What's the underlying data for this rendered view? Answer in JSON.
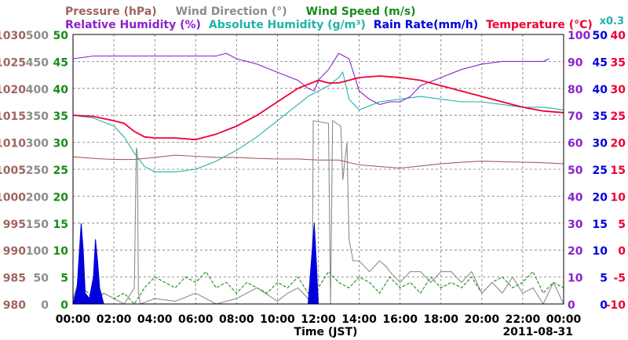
{
  "colors": {
    "pressure": "#a0645f",
    "wind_direction": "#8c8c8c",
    "wind_speed": "#1a8a1a",
    "relative_humidity": "#8a22cc",
    "absolute_humidity": "#20b2aa",
    "rain_rate": "#0000dd",
    "temperature": "#ee0033"
  },
  "chart_data": {
    "type": "line",
    "legend": {
      "row1": [
        {
          "key": "pressure",
          "label": "Pressure (hPa)"
        },
        {
          "key": "wind_direction",
          "label": "Wind Direction (°)"
        },
        {
          "key": "wind_speed",
          "label": "Wind Speed (m/s)"
        }
      ],
      "row2": [
        {
          "key": "relative_humidity",
          "label": "Relative Humidity (%)"
        },
        {
          "key": "absolute_humidity",
          "label": "Absolute Humidity (g/m³)"
        },
        {
          "key": "rain_rate",
          "label": "Rain Rate(mm/h)"
        },
        {
          "key": "temperature",
          "label": "Temperature (°C)"
        }
      ],
      "scale_note": "x0.3"
    },
    "xlabel": "Time (JST)",
    "date": "2011-08-31",
    "x_ticks": [
      "00:00",
      "02:00",
      "04:00",
      "06:00",
      "08:00",
      "10:00",
      "12:00",
      "14:00",
      "16:00",
      "18:00",
      "20:00",
      "22:00",
      "00:00"
    ],
    "xlim_hours": [
      0,
      24
    ],
    "grid": true,
    "axes": {
      "pressure": {
        "side": "left",
        "min": 980,
        "max": 1030,
        "ticks": [
          "980",
          "985",
          "990",
          "995",
          "1000",
          "1005",
          "1010",
          "1015",
          "1020",
          "1025",
          "1030"
        ]
      },
      "wind_direction": {
        "side": "left",
        "min": 0,
        "max": 500,
        "ticks": [
          "0",
          "50",
          "100",
          "150",
          "200",
          "250",
          "300",
          "350",
          "400",
          "450",
          "500"
        ]
      },
      "wind_speed": {
        "side": "left",
        "min": 0,
        "max": 50,
        "ticks": [
          "0",
          "5",
          "10",
          "15",
          "20",
          "25",
          "30",
          "35",
          "40",
          "45",
          "50"
        ]
      },
      "relative_humidity": {
        "side": "right",
        "min": 0,
        "max": 100,
        "ticks": [
          "0",
          "10",
          "20",
          "30",
          "40",
          "50",
          "60",
          "70",
          "80",
          "90",
          "100"
        ]
      },
      "rain_rate": {
        "side": "right",
        "min": 0,
        "max": 50,
        "ticks": [
          "0",
          "5",
          "10",
          "15",
          "20",
          "25",
          "30",
          "35",
          "40",
          "45",
          "50"
        ]
      },
      "temperature": {
        "side": "right",
        "min": -10,
        "max": 40,
        "ticks": [
          "-10",
          "-5",
          "0",
          "5",
          "10",
          "15",
          "20",
          "25",
          "30",
          "35",
          "40"
        ]
      }
    },
    "series": [
      {
        "name": "Pressure (hPa)",
        "key": "pressure",
        "axis": "pressure",
        "x": [
          0,
          1,
          2,
          3,
          4,
          5,
          6,
          7,
          8,
          9,
          10,
          11,
          12,
          13,
          14,
          15,
          16,
          17,
          18,
          19,
          20,
          21,
          22,
          23,
          24
        ],
        "y": [
          1007.3,
          1007,
          1006.8,
          1006.8,
          1007.2,
          1007.6,
          1007.4,
          1007.2,
          1007.2,
          1007,
          1006.9,
          1006.9,
          1006.7,
          1006.7,
          1005.8,
          1005.5,
          1005.2,
          1005.6,
          1006,
          1006.3,
          1006.5,
          1006.4,
          1006.3,
          1006.2,
          1006
        ]
      },
      {
        "name": "Wind Direction (°)",
        "key": "wind_direction",
        "axis": "wind_direction",
        "x": [
          0,
          0.25,
          0.5,
          1,
          1.5,
          2,
          2.5,
          3,
          3.1,
          3.15,
          3.2,
          3.3,
          4,
          5,
          6,
          7,
          8,
          9,
          10,
          10.5,
          11,
          11.5,
          11.7,
          11.75,
          12.5,
          12.6,
          12.7,
          13.1,
          13.2,
          13.4,
          13.5,
          13.7,
          14,
          14.5,
          15,
          15.3,
          15.5,
          16,
          16.5,
          17,
          17.5,
          18,
          18.5,
          19,
          19.5,
          20,
          20.5,
          21,
          21.5,
          22,
          22.5,
          23,
          23.5,
          24
        ],
        "y": [
          10,
          40,
          5,
          0,
          20,
          10,
          0,
          30,
          290,
          280,
          20,
          0,
          10,
          5,
          20,
          0,
          10,
          30,
          5,
          20,
          30,
          10,
          0,
          340,
          335,
          0,
          340,
          330,
          230,
          300,
          120,
          80,
          80,
          60,
          80,
          70,
          60,
          40,
          60,
          60,
          40,
          60,
          60,
          40,
          60,
          20,
          40,
          20,
          50,
          20,
          30,
          0,
          40,
          0
        ]
      },
      {
        "name": "Wind Speed (m/s)",
        "key": "wind_speed",
        "axis": "wind_speed",
        "x": [
          0,
          0.5,
          1,
          1.5,
          2,
          2.5,
          3,
          3.5,
          4,
          4.5,
          5,
          5.5,
          6,
          6.5,
          7,
          7.5,
          8,
          8.5,
          9,
          9.5,
          10,
          10.5,
          11,
          11.5,
          12,
          12.5,
          13,
          13.5,
          14,
          14.5,
          15,
          15.5,
          16,
          16.5,
          17,
          17.5,
          18,
          18.5,
          19,
          19.5,
          20,
          20.5,
          21,
          21.5,
          22,
          22.5,
          23,
          23.5,
          24
        ],
        "y": [
          1,
          3,
          1,
          2,
          1,
          2,
          0,
          3,
          5,
          4,
          3,
          5,
          4,
          6,
          3,
          4,
          2,
          4,
          3,
          2,
          4,
          3,
          5,
          2,
          3,
          6,
          4,
          3,
          5,
          4,
          2,
          5,
          3,
          4,
          2,
          5,
          3,
          4,
          3,
          5,
          2,
          4,
          5,
          3,
          4,
          6,
          2,
          4,
          3
        ]
      },
      {
        "name": "Relative Humidity (%)",
        "key": "relative_humidity",
        "axis": "relative_humidity",
        "x": [
          0,
          1,
          2,
          3,
          4,
          5,
          6,
          7,
          7.5,
          8,
          9,
          10,
          11,
          11.5,
          11.8,
          12,
          12.5,
          13,
          13.5,
          14,
          14.5,
          15,
          15.5,
          16,
          16.5,
          17,
          18,
          19,
          20,
          21,
          22,
          23,
          23.3
        ],
        "y": [
          91,
          92,
          92,
          92,
          92,
          92,
          92,
          92,
          93,
          91,
          89,
          86,
          83,
          80,
          79,
          83,
          87,
          93,
          91,
          79,
          76,
          74,
          75,
          75,
          77,
          81,
          84,
          87,
          89,
          90,
          90,
          90,
          91
        ]
      },
      {
        "name": "Absolute Humidity (g/m³)",
        "key": "absolute_humidity",
        "axis": "rain_rate",
        "x": [
          0,
          1,
          2,
          2.5,
          3,
          3.5,
          4,
          5,
          6,
          7,
          8,
          9,
          10,
          11,
          11.5,
          12,
          12.5,
          13,
          13.2,
          13.5,
          14,
          15,
          16,
          17,
          18,
          19,
          20,
          21,
          22,
          23,
          24
        ],
        "y": [
          35,
          34.5,
          33,
          31,
          28,
          25.5,
          24.5,
          24.5,
          25,
          26.5,
          28.5,
          31,
          34,
          37,
          38.5,
          39.5,
          40.5,
          42,
          43,
          38,
          36,
          37.5,
          38,
          38.5,
          38,
          37.5,
          37.5,
          37,
          36.5,
          36.5,
          36
        ]
      },
      {
        "name": "Rain Rate(mm/h)",
        "key": "rain_rate",
        "axis": "rain_rate",
        "x": [
          0,
          0.2,
          0.4,
          0.5,
          0.6,
          0.8,
          1,
          1.1,
          1.2,
          1.3,
          1.5,
          11.5,
          11.6,
          11.7,
          11.8,
          11.9,
          12
        ],
        "y": [
          0,
          3,
          15,
          10,
          2,
          1,
          5,
          12,
          8,
          3,
          0,
          0,
          5,
          10,
          15,
          8,
          0
        ],
        "style": "filled"
      },
      {
        "name": "Temperature (°C)",
        "key": "temperature",
        "axis": "temperature",
        "x": [
          0,
          1,
          2,
          2.5,
          3,
          3.5,
          4,
          5,
          6,
          7,
          8,
          9,
          10,
          11,
          12,
          12.5,
          13,
          14,
          15,
          16,
          17,
          18,
          19,
          20,
          21,
          22,
          23,
          24
        ],
        "y": [
          25,
          24.8,
          24,
          23.5,
          22,
          21,
          20.8,
          20.8,
          20.5,
          21.5,
          23,
          25,
          27.5,
          30,
          31.5,
          31,
          31,
          32,
          32.3,
          32,
          31.5,
          30.5,
          29.5,
          28.5,
          27.5,
          26.5,
          25.8,
          25.5
        ]
      }
    ]
  }
}
